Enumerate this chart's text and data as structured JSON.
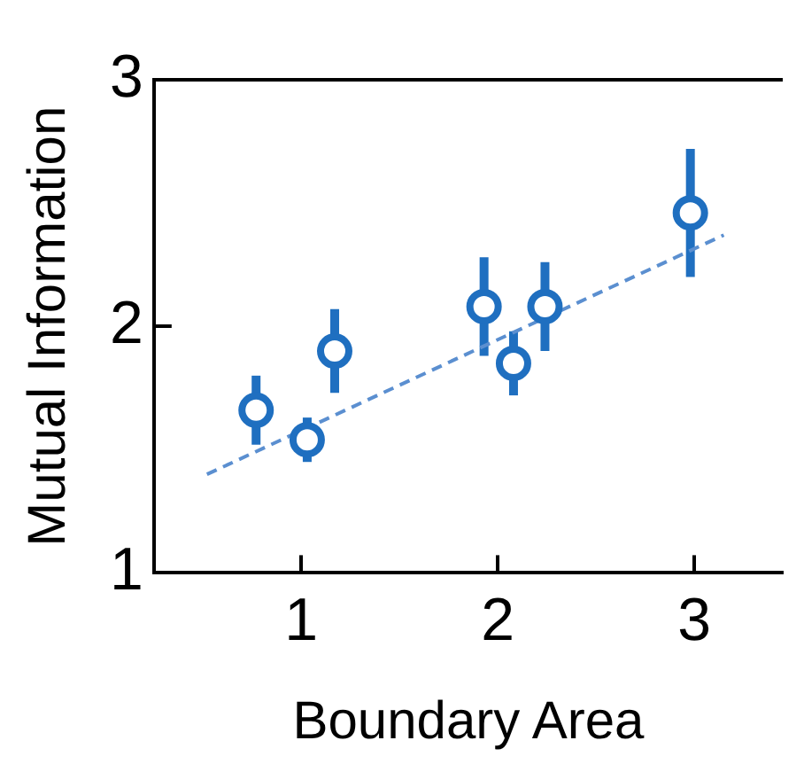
{
  "chart_data": {
    "type": "scatter",
    "xlabel": "Boundary Area",
    "ylabel": "Mutual Information",
    "xlim": [
      0.25,
      3.45
    ],
    "xticks": [
      1,
      2,
      3
    ],
    "ylim": [
      1,
      3
    ],
    "yticks": [
      1,
      2,
      3
    ],
    "grid": false,
    "legend": false,
    "marker": "circle",
    "series": [
      {
        "color": "#1f6fc0",
        "x": [
          0.77,
          1.03,
          1.17,
          1.93,
          2.08,
          2.24,
          2.98
        ],
        "values": [
          1.66,
          1.54,
          1.9,
          2.08,
          1.85,
          2.08,
          2.46
        ],
        "errors": [
          0.14,
          0.09,
          0.17,
          0.2,
          0.13,
          0.18,
          0.26
        ]
      },
      {
        "type": "line",
        "color": "#5b8fd0",
        "line_style": "dashed",
        "marker": "none",
        "x": [
          0.52,
          3.15
        ],
        "values": [
          1.4,
          2.37
        ]
      }
    ]
  }
}
